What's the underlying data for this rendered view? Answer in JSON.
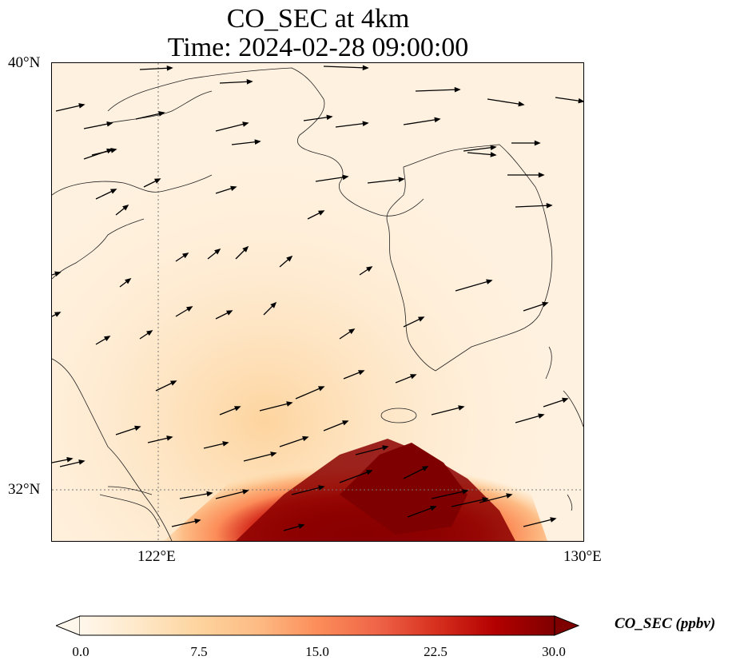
{
  "title": {
    "line1": "CO_SEC at 4km",
    "line2": "Time: 2024-02-28 09:00:00"
  },
  "map": {
    "lon_range": [
      120,
      130
    ],
    "lat_range": [
      31,
      40
    ],
    "gridlines": {
      "lons": [
        122,
        130
      ],
      "lats": [
        32,
        40
      ],
      "style": "dotted"
    },
    "lat_labels": [
      "40°N",
      "32°N"
    ],
    "lon_labels": [
      "122°E",
      "130°E"
    ],
    "field": "CO_SEC concentration with wind vectors",
    "wind_direction": "mostly west-to-east, slightly northeastward"
  },
  "colorbar": {
    "label": "CO_SEC (ppbv)",
    "ticks": [
      "0.0",
      "7.5",
      "15.0",
      "22.5",
      "30.0"
    ],
    "min": 0,
    "max": 30,
    "colormap": "OrRd",
    "colors": [
      "#fff7ec",
      "#fee8c8",
      "#fdd49e",
      "#fdbb84",
      "#fc8d59",
      "#ef6548",
      "#d7301f",
      "#b30000",
      "#7f0000"
    ]
  }
}
